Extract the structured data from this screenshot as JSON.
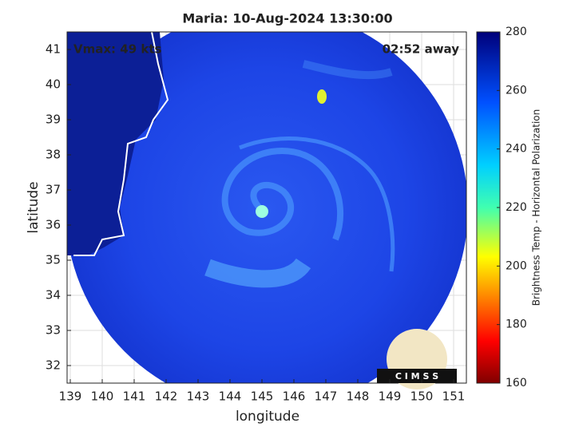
{
  "chart_data": {
    "type": "map",
    "title": "Maria: 10-Aug-2024 13:30:00",
    "xlabel": "longitude",
    "ylabel": "latitude",
    "xlim": [
      138.9,
      151.4
    ],
    "ylim": [
      31.5,
      41.5
    ],
    "xticks": [
      139,
      140,
      141,
      142,
      143,
      144,
      145,
      146,
      147,
      148,
      149,
      150,
      151
    ],
    "yticks": [
      32,
      33,
      34,
      35,
      36,
      37,
      38,
      39,
      40,
      41
    ],
    "grid": true,
    "annotations": [
      "Vmax: 49 kts",
      "02:52 away"
    ],
    "colorbar": {
      "label": "Brightness Temp - Horizontal Polarization",
      "clim": [
        160,
        280
      ],
      "ticks": [
        160,
        180,
        200,
        220,
        240,
        260,
        280
      ]
    },
    "logo": "C I M S S"
  }
}
